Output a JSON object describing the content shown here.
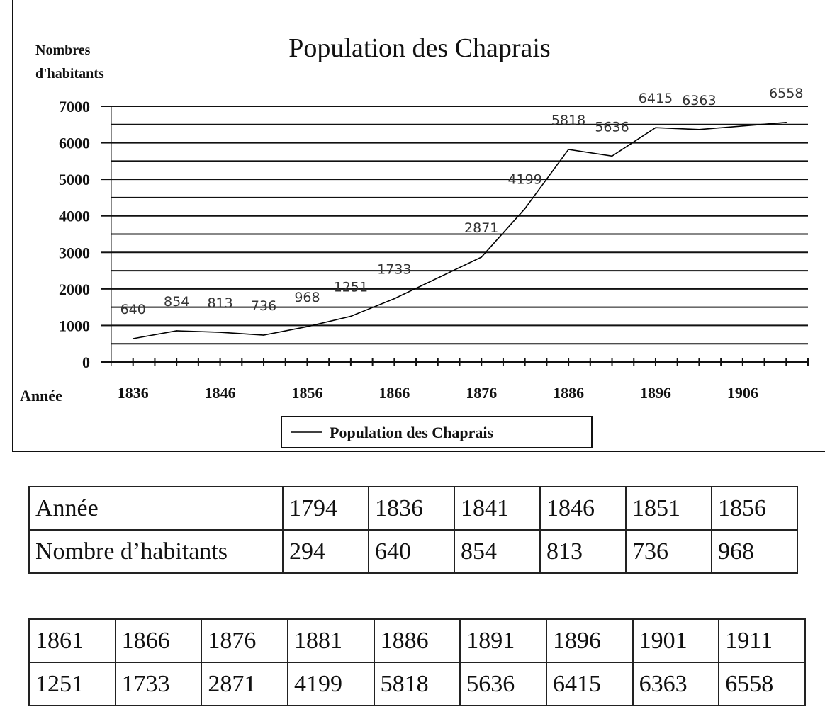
{
  "chart_data": {
    "type": "line",
    "title": "Population des Chaprais",
    "ylabel": "Nombres d'habitants",
    "ylabel_lines": [
      "Nombres",
      "d'habitants"
    ],
    "xlabel": "Année",
    "ylim": [
      0,
      7000
    ],
    "xlim": [
      1833.5,
      1913.5
    ],
    "yticks": [
      "0",
      "1000",
      "2000",
      "3000",
      "4000",
      "5000",
      "6000",
      "7000"
    ],
    "xticks": [
      "1836",
      "1846",
      "1856",
      "1866",
      "1876",
      "1886",
      "1896",
      "1906"
    ],
    "grid": "horizontal every 500",
    "legend": {
      "position": "bottom",
      "entries": [
        "Population des Chaprais"
      ]
    },
    "series": [
      {
        "name": "Population des Chaprais",
        "color": "#000000",
        "x": [
          1836,
          1841,
          1846,
          1851,
          1856,
          1861,
          1866,
          1876,
          1881,
          1886,
          1891,
          1896,
          1901,
          1911
        ],
        "values": [
          640,
          854,
          813,
          736,
          968,
          1251,
          1733,
          2871,
          4199,
          5818,
          5636,
          6415,
          6363,
          6558
        ]
      }
    ]
  },
  "table1": {
    "rows": [
      [
        "Année",
        "1794",
        "1836",
        "1841",
        "1846",
        "1851",
        "1856"
      ],
      [
        "Nombre d’habitants",
        "294",
        "640",
        "854",
        "813",
        "736",
        "968"
      ]
    ]
  },
  "table2": {
    "rows": [
      [
        "1861",
        "1866",
        "1876",
        "1881",
        "1886",
        "1891",
        "1896",
        "1901",
        "1911"
      ],
      [
        "1251",
        "1733",
        "2871",
        "4199",
        "5818",
        "5636",
        "6415",
        "6363",
        "6558"
      ]
    ]
  }
}
